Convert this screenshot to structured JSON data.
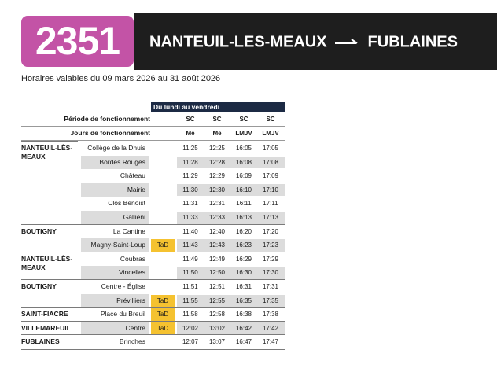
{
  "header": {
    "line_number": "2351",
    "origin": "NANTEUIL-LES-MEAUX",
    "destination": "FUBLAINES",
    "validity": "Horaires valables du 09 mars 2026 au 31 août 2026",
    "badge_color": "#c353a6"
  },
  "table": {
    "period_title": "Du lundi au vendredi",
    "row_label_period": "Période de fonctionnement",
    "row_label_days": "Jours de fonctionnement",
    "periods": [
      "SC",
      "SC",
      "SC",
      "SC"
    ],
    "days": [
      "Me",
      "Me",
      "LMJV",
      "LMJV"
    ],
    "tad_label": "TaD",
    "communes": [
      {
        "name": "NANTEUIL-LÈS-\nMEAUX",
        "start": 0,
        "end": 5
      },
      {
        "name": "BOUTIGNY",
        "start": 6,
        "end": 7
      },
      {
        "name": "NANTEUIL-LÈS-\nMEAUX",
        "start": 8,
        "end": 9
      },
      {
        "name": "BOUTIGNY",
        "start": 10,
        "end": 11
      },
      {
        "name": "SAINT-FIACRE",
        "start": 12,
        "end": 12
      },
      {
        "name": "VILLEMAREUIL",
        "start": 13,
        "end": 13
      },
      {
        "name": "FUBLAINES",
        "start": 14,
        "end": 14
      }
    ],
    "stops": [
      {
        "name": "Collège de la Dhuis",
        "tad": false,
        "times": [
          "11:25",
          "12:25",
          "16:05",
          "17:05"
        ]
      },
      {
        "name": "Bordes Rouges",
        "tad": false,
        "times": [
          "11:28",
          "12:28",
          "16:08",
          "17:08"
        ]
      },
      {
        "name": "Château",
        "tad": false,
        "times": [
          "11:29",
          "12:29",
          "16:09",
          "17:09"
        ]
      },
      {
        "name": "Mairie",
        "tad": false,
        "times": [
          "11:30",
          "12:30",
          "16:10",
          "17:10"
        ]
      },
      {
        "name": "Clos Benoist",
        "tad": false,
        "times": [
          "11:31",
          "12:31",
          "16:11",
          "17:11"
        ]
      },
      {
        "name": "Gallieni",
        "tad": false,
        "times": [
          "11:33",
          "12:33",
          "16:13",
          "17:13"
        ]
      },
      {
        "name": "La Cantine",
        "tad": false,
        "times": [
          "11:40",
          "12:40",
          "16:20",
          "17:20"
        ]
      },
      {
        "name": "Magny-Saint-Loup",
        "tad": true,
        "times": [
          "11:43",
          "12:43",
          "16:23",
          "17:23"
        ]
      },
      {
        "name": "Coubras",
        "tad": false,
        "times": [
          "11:49",
          "12:49",
          "16:29",
          "17:29"
        ]
      },
      {
        "name": "Vincelles",
        "tad": false,
        "times": [
          "11:50",
          "12:50",
          "16:30",
          "17:30"
        ]
      },
      {
        "name": "Centre - Église",
        "tad": false,
        "times": [
          "11:51",
          "12:51",
          "16:31",
          "17:31"
        ]
      },
      {
        "name": "Prévilliers",
        "tad": true,
        "times": [
          "11:55",
          "12:55",
          "16:35",
          "17:35"
        ]
      },
      {
        "name": "Place du Breuil",
        "tad": true,
        "times": [
          "11:58",
          "12:58",
          "16:38",
          "17:38"
        ]
      },
      {
        "name": "Centre",
        "tad": true,
        "times": [
          "12:02",
          "13:02",
          "16:42",
          "17:42"
        ]
      },
      {
        "name": "Brinches",
        "tad": false,
        "times": [
          "12:07",
          "13:07",
          "16:47",
          "17:47"
        ]
      }
    ]
  }
}
